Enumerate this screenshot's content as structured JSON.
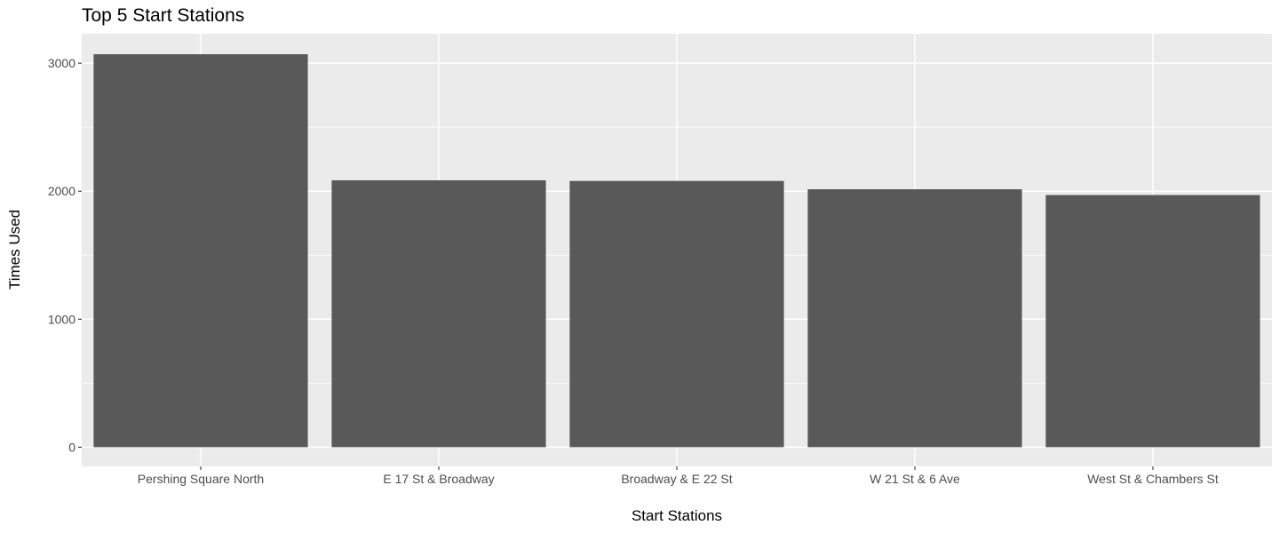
{
  "chart_data": {
    "type": "bar",
    "title": "Top 5 Start Stations",
    "xlabel": "Start Stations",
    "ylabel": "Times Used",
    "categories": [
      "Pershing Square North",
      "E 17 St & Broadway",
      "Broadway & E 22 St",
      "W 21 St & 6 Ave",
      "West St & Chambers St"
    ],
    "values": [
      3070,
      2085,
      2080,
      2015,
      1970
    ],
    "ylim": [
      -150,
      3230
    ],
    "yticks": [
      0,
      1000,
      2000,
      3000
    ],
    "grid": true,
    "legend": "none",
    "colors": {
      "bar": "#595959",
      "panel": "#EBEBEB",
      "grid": "#FFFFFF"
    }
  }
}
